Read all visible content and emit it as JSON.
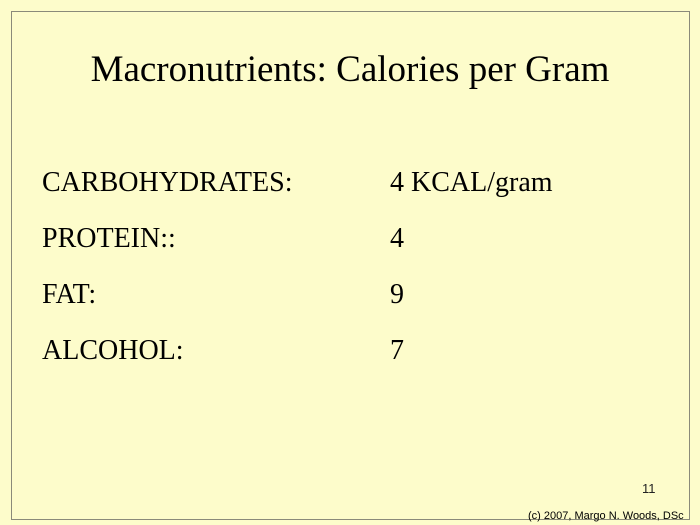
{
  "slide": {
    "title": "Macronutrients: Calories per Gram",
    "rows": [
      [
        "CARBOHYDRATES:",
        "4 KCAL/gram"
      ],
      [
        "PROTEIN::",
        4
      ],
      [
        "FAT:",
        9
      ],
      [
        "ALCOHOL:",
        7
      ]
    ],
    "page_number": 11,
    "footer": "(c) 2007, Margo N. Woods, DSc"
  }
}
